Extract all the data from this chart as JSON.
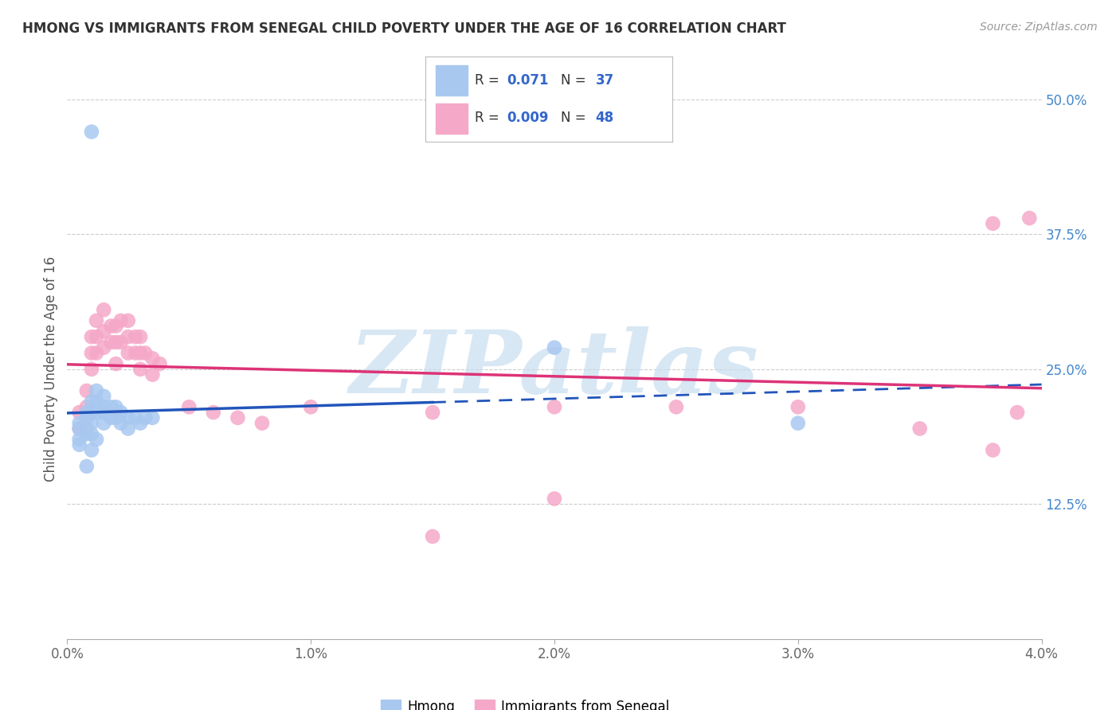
{
  "title": "HMONG VS IMMIGRANTS FROM SENEGAL CHILD POVERTY UNDER THE AGE OF 16 CORRELATION CHART",
  "source": "Source: ZipAtlas.com",
  "ylabel": "Child Poverty Under the Age of 16",
  "xlim": [
    0.0,
    0.04
  ],
  "ylim": [
    0.0,
    0.5
  ],
  "ytick_positions": [
    0.125,
    0.25,
    0.375,
    0.5
  ],
  "xtick_positions": [
    0.0,
    0.01,
    0.02,
    0.03,
    0.04
  ],
  "hmong_R": "0.071",
  "hmong_N": "37",
  "senegal_R": "0.009",
  "senegal_N": "48",
  "legend_labels": [
    "Hmong",
    "Immigrants from Senegal"
  ],
  "hmong_color": "#a8c8f0",
  "senegal_color": "#f5a8c8",
  "hmong_line_color": "#2255bb",
  "senegal_line_color": "#dd3377",
  "watermark_text": "ZIPatlas",
  "watermark_color": "#c8ddf0",
  "background_color": "#ffffff",
  "grid_color": "#cccccc",
  "hmong_x": [
    0.0005,
    0.0005,
    0.0005,
    0.0008,
    0.0008,
    0.0008,
    0.001,
    0.001,
    0.001,
    0.001,
    0.0012,
    0.0012,
    0.0012,
    0.0015,
    0.0015,
    0.0015,
    0.0015,
    0.0018,
    0.0018,
    0.002,
    0.002,
    0.0022,
    0.0022,
    0.0025,
    0.0025,
    0.0028,
    0.003,
    0.0032,
    0.0035,
    0.0005,
    0.0008,
    0.001,
    0.0012,
    0.02,
    0.03,
    0.001,
    0.0008
  ],
  "hmong_y": [
    0.195,
    0.2,
    0.185,
    0.21,
    0.205,
    0.195,
    0.22,
    0.21,
    0.2,
    0.19,
    0.23,
    0.22,
    0.21,
    0.225,
    0.215,
    0.21,
    0.2,
    0.215,
    0.205,
    0.215,
    0.205,
    0.21,
    0.2,
    0.205,
    0.195,
    0.205,
    0.2,
    0.205,
    0.205,
    0.18,
    0.19,
    0.175,
    0.185,
    0.27,
    0.2,
    0.47,
    0.16
  ],
  "senegal_x": [
    0.0005,
    0.0005,
    0.0008,
    0.0008,
    0.001,
    0.001,
    0.001,
    0.0012,
    0.0012,
    0.0012,
    0.0015,
    0.0015,
    0.0015,
    0.0018,
    0.0018,
    0.002,
    0.002,
    0.002,
    0.0022,
    0.0022,
    0.0025,
    0.0025,
    0.0025,
    0.0028,
    0.0028,
    0.003,
    0.003,
    0.003,
    0.0032,
    0.0035,
    0.0035,
    0.0038,
    0.01,
    0.015,
    0.015,
    0.02,
    0.02,
    0.025,
    0.03,
    0.035,
    0.038,
    0.038,
    0.039,
    0.0395,
    0.005,
    0.006,
    0.007,
    0.008
  ],
  "senegal_y": [
    0.21,
    0.195,
    0.23,
    0.215,
    0.28,
    0.265,
    0.25,
    0.295,
    0.28,
    0.265,
    0.305,
    0.285,
    0.27,
    0.29,
    0.275,
    0.29,
    0.275,
    0.255,
    0.295,
    0.275,
    0.295,
    0.28,
    0.265,
    0.28,
    0.265,
    0.28,
    0.265,
    0.25,
    0.265,
    0.26,
    0.245,
    0.255,
    0.215,
    0.095,
    0.21,
    0.215,
    0.13,
    0.215,
    0.215,
    0.195,
    0.385,
    0.175,
    0.21,
    0.39,
    0.215,
    0.21,
    0.205,
    0.2
  ]
}
